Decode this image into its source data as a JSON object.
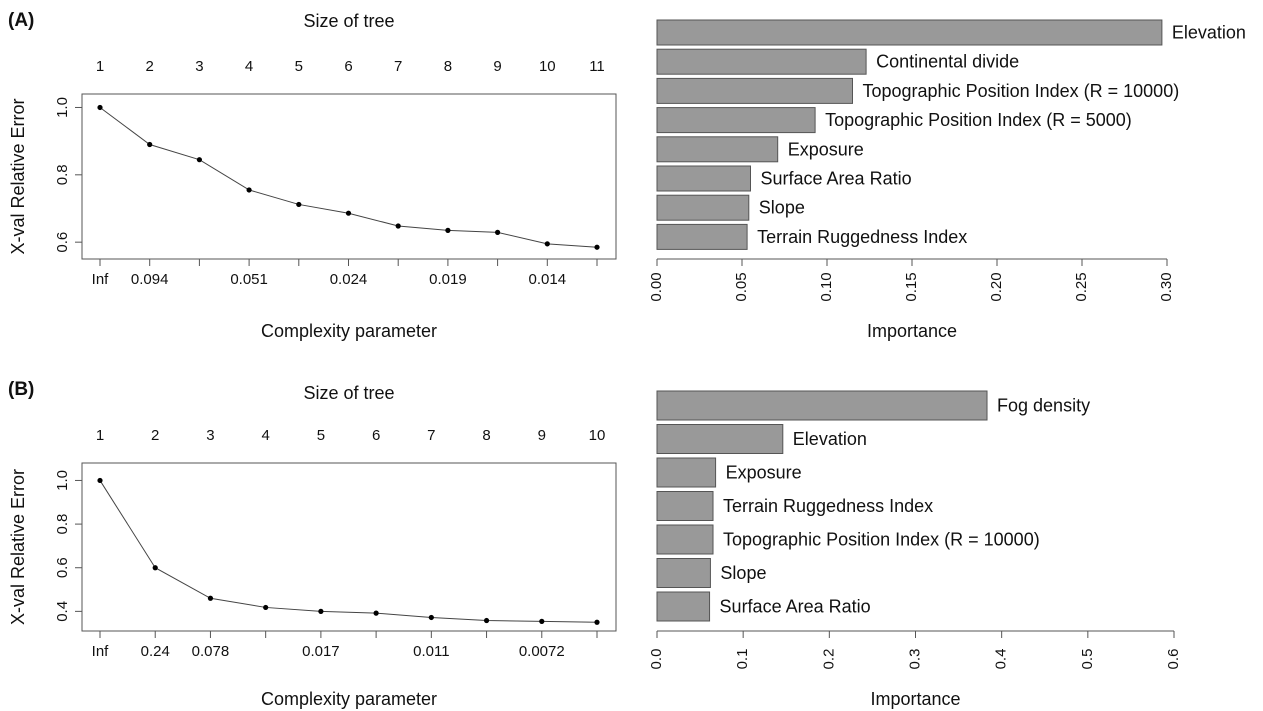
{
  "panels": [
    {
      "label": "(A)",
      "cp_plot": {
        "type": "line",
        "title": "Size of tree",
        "xlabel": "Complexity parameter",
        "ylabel": "X-val Relative Error",
        "top_ticks": [
          "1",
          "2",
          "3",
          "4",
          "5",
          "6",
          "7",
          "8",
          "9",
          "10",
          "11"
        ],
        "bottom_ticks": [
          "Inf",
          "0.094",
          "",
          "0.051",
          "",
          "0.024",
          "",
          "0.019",
          "",
          "0.014",
          ""
        ],
        "y_ticks": [
          "0.6",
          "0.8",
          "1.0"
        ],
        "ylim": [
          0.55,
          1.04
        ],
        "values": [
          1.0,
          0.89,
          0.845,
          0.755,
          0.712,
          0.686,
          0.648,
          0.635,
          0.629,
          0.595,
          0.585
        ]
      },
      "importance": {
        "type": "bar",
        "xlabel": "Importance",
        "xlim": [
          0,
          0.3
        ],
        "x_ticks": [
          "0.00",
          "0.05",
          "0.10",
          "0.15",
          "0.20",
          "0.25",
          "0.30"
        ],
        "categories": [
          "Elevation",
          "Continental divide",
          "Topographic Position Index (R = 10000)",
          "Topographic Position Index (R = 5000)",
          "Exposure",
          "Surface Area Ratio",
          "Slope",
          "Terrain Ruggedness Index"
        ],
        "values": [
          0.297,
          0.123,
          0.115,
          0.093,
          0.071,
          0.055,
          0.054,
          0.053
        ]
      }
    },
    {
      "label": "(B)",
      "cp_plot": {
        "type": "line",
        "title": "Size of tree",
        "xlabel": "Complexity parameter",
        "ylabel": "X-val Relative Error",
        "top_ticks": [
          "1",
          "2",
          "3",
          "4",
          "5",
          "6",
          "7",
          "8",
          "9",
          "10"
        ],
        "bottom_ticks": [
          "Inf",
          "0.24",
          "0.078",
          "",
          "0.017",
          "",
          "0.011",
          "",
          "0.0072",
          ""
        ],
        "y_ticks": [
          "0.4",
          "0.6",
          "0.8",
          "1.0"
        ],
        "ylim": [
          0.31,
          1.08
        ],
        "values": [
          1.0,
          0.6,
          0.46,
          0.418,
          0.4,
          0.392,
          0.372,
          0.358,
          0.354,
          0.35
        ]
      },
      "importance": {
        "type": "bar",
        "xlabel": "Importance",
        "xlim": [
          0,
          0.6
        ],
        "x_ticks": [
          "0.0",
          "0.1",
          "0.2",
          "0.3",
          "0.4",
          "0.5",
          "0.6"
        ],
        "categories": [
          "Fog density",
          "Elevation",
          "Exposure",
          "Terrain Ruggedness Index",
          "Topographic Position Index (R = 10000)",
          "Slope",
          "Surface Area Ratio"
        ],
        "values": [
          0.383,
          0.146,
          0.068,
          0.065,
          0.065,
          0.062,
          0.061
        ]
      }
    }
  ],
  "style": {
    "bar_fill": "#999999",
    "bar_stroke": "#555555",
    "line_color": "#444444",
    "point_color": "#000000"
  }
}
